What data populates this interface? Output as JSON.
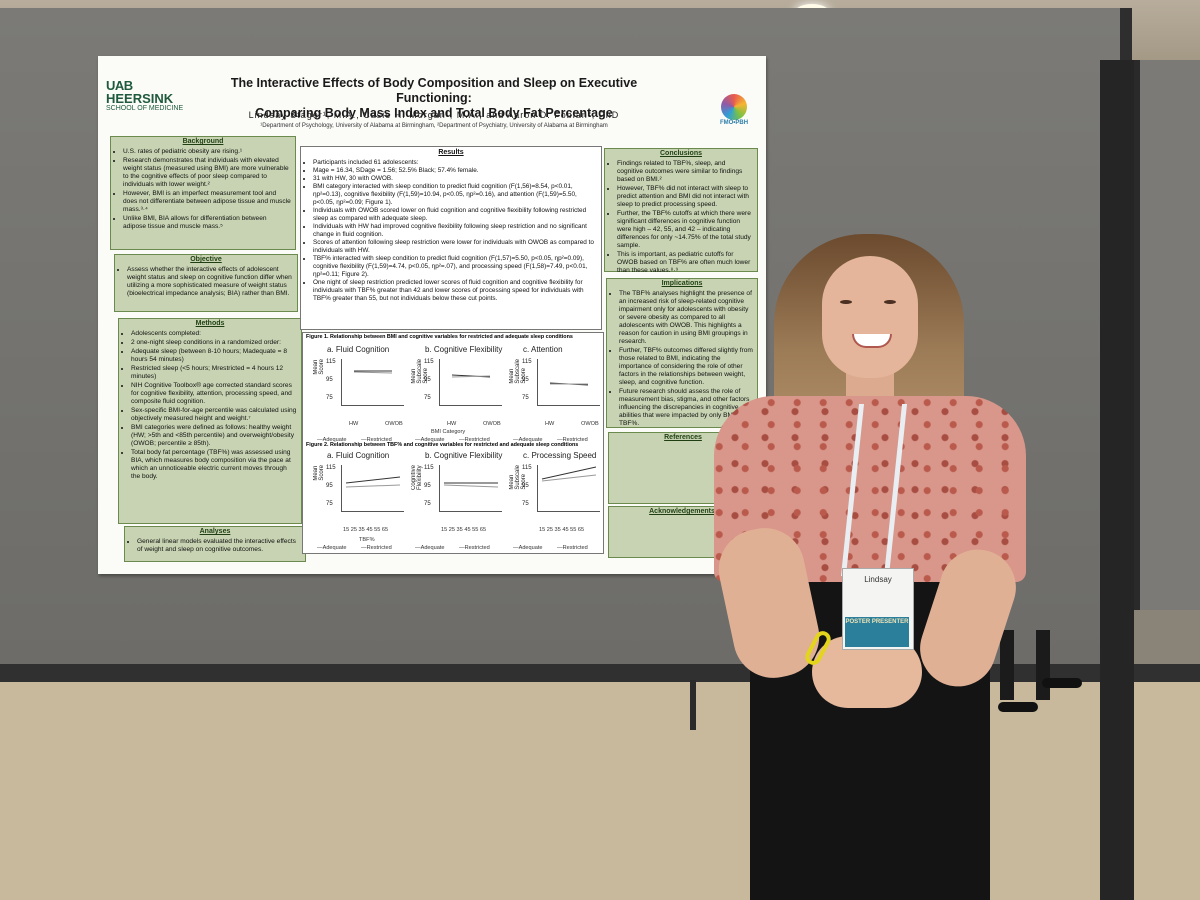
{
  "poster": {
    "logo": {
      "uab": "UAB",
      "heersink": "HEERSINK",
      "school": "SCHOOL OF MEDICINE"
    },
    "badge_text": "FMO•PBH",
    "title_line1": "The Interactive Effects of Body Composition and Sleep on Executive Functioning:",
    "title_line2": "Comparing Body Mass Index and Total Body Fat Percentage",
    "authors": "Lindsay Stager¹, M.A., Casie H. Morgan¹, M.A., and Aaron D. Fobian², PhD",
    "affiliation": "¹Department of Psychology, University of Alabama at Birmingham, ²Department of Psychiatry, University of Alabama at Birmingham",
    "background": {
      "heading": "Background",
      "items": [
        "U.S. rates of pediatric obesity are rising.¹",
        "Research demonstrates that individuals with elevated weight status (measured using BMI) are more vulnerable to the cognitive effects of poor sleep compared to individuals with lower weight.²",
        "However, BMI is an imperfect measurement tool and does not differentiate between adipose tissue and muscle mass.³·⁴",
        "Unlike BMI, BIA allows for differentiation between adipose tissue and muscle mass.⁵"
      ]
    },
    "objective": {
      "heading": "Objective",
      "items": [
        "Assess whether the interactive effects of adolescent weight status and sleep on cognitive function differ when utilizing a more sophisticated measure of weight status (bioelectrical impedance analysis; BIA) rather than BMI."
      ]
    },
    "methods": {
      "heading": "Methods",
      "items": [
        "Adolescents completed:",
        "2 one-night sleep conditions in a randomized order:",
        "Adequate sleep (between 8-10 hours; Madequate = 8 hours 54 minutes)",
        "Restricted sleep (<5 hours; Mrestricted = 4 hours 12 minutes)",
        "NIH Cognitive Toolbox® age corrected standard scores for cognitive flexibility, attention, processing speed, and composite fluid cognition.",
        "Sex-specific BMI-for-age percentile was calculated using objectively measured height and weight.⁷",
        "BMI categories were defined as follows: healthy weight (HW; >5th and <85th percentile) and overweight/obesity (OWOB; percentile ≥ 85th).",
        "Total body fat percentage (TBF%) was assessed using BIA, which measures body composition via the pace at which an unnoticeable electric current moves through the body."
      ]
    },
    "analyses": {
      "heading": "Analyses",
      "items": [
        "General linear models evaluated the interactive effects of weight and sleep on cognitive outcomes."
      ]
    },
    "results": {
      "heading": "Results",
      "items": [
        "Participants included 61 adolescents:",
        "Mage = 16.34, SDage = 1.56; 52.5% Black; 57.4% female.",
        "31 with HW, 30 with OWOB.",
        "BMI category interacted with sleep condition to predict fluid cognition (F(1,56)=8.54, p<0.01, ηp²=0.13), cognitive flexibility (F(1,59)=10.94, p<0.05, ηp²=0.16), and attention (F(1,59)=5.50, p<0.05, ηp²=0.09; Figure 1).",
        "Individuals with OWOB scored lower on fluid cognition and cognitive flexibility following restricted sleep as compared with adequate sleep.",
        "Individuals with HW had improved cognitive flexibility following sleep restriction and no significant change in fluid cognition.",
        "Scores of attention following sleep restriction were lower for individuals with OWOB as compared to individuals with HW.",
        "TBF% interacted with sleep condition to predict fluid cognition (F(1,57)=5.50, p<0.05, ηp²=0.09), cognitive flexibility (F(1,59)=4.74, p<0.05, ηp²=.07), and processing speed (F(1,58)=7.49, p<0.01, ηp²=0.11; Figure 2).",
        "One night of sleep restriction predicted lower scores of fluid cognition and cognitive flexibility for individuals with TBF% greater than 42 and lower scores of processing speed for individuals with TBF% greater than 55, but not individuals below these cut points."
      ]
    },
    "figure1": {
      "caption": "Figure 1. Relationship between BMI and cognitive variables for restricted and adequate sleep conditions",
      "panels": [
        "a. Fluid Cognition",
        "b. Cognitive Flexibility",
        "c. Attention"
      ],
      "y_labels": [
        "Mean Score",
        "Mean Subscale Score",
        "Mean Subscale Score"
      ],
      "y_ticks": [
        "115",
        "95",
        "75"
      ],
      "x_ticks": [
        "HW",
        "OWOB"
      ],
      "x_label": "BMI Category",
      "legend": [
        "Adequate",
        "Restricted"
      ]
    },
    "figure2": {
      "caption": "Figure 2. Relationship between TBF% and cognitive variables for restricted and adequate sleep conditions",
      "panels": [
        "a. Fluid Cognition",
        "b. Cognitive Flexibility",
        "c. Processing Speed"
      ],
      "y_labels": [
        "Mean Score",
        "Cognitive Flexibility",
        "Mean Subscale Score"
      ],
      "y_ticks": [
        "115",
        "95",
        "75"
      ],
      "x_ticks": "15 25 35 45 55 65",
      "x_label": "TBF%",
      "legend": [
        "Adequate",
        "Restricted"
      ]
    },
    "conclusions": {
      "heading": "Conclusions",
      "items": [
        "Findings related to TBF%, sleep, and cognitive outcomes were similar to findings based on BMI.²",
        "However, TBF% did not interact with sleep to predict attention and BMI did not interact with sleep to predict processing speed.",
        "Further, the TBF% cutoffs at which there were significant differences in cognitive function were high – 42, 55, and 42 – indicating differences for only ~14.75% of the total study sample.",
        "This is important, as pediatric cutoffs for OWOB based on TBF% are often much lower than these values.⁸·⁹"
      ]
    },
    "implications": {
      "heading": "Implications",
      "items": [
        "The TBF% analyses highlight the presence of an increased risk of sleep-related cognitive impairment only for adolescents with obesity or severe obesity as compared to all adolescents with OWOB. This highlights a reason for caution in using BMI groupings in research.",
        "Further, TBF% outcomes differed slightly from those related to BMI, indicating the importance of considering the role of other factors in the relationships between weight, sleep, and cognitive function.",
        "Future research should assess the role of measurement bias, stigma, and other factors influencing the discrepancies in cognitive abilities that were impacted by only BMI or TBF%."
      ]
    },
    "references": {
      "heading": "References"
    },
    "acknowledgements": {
      "heading": "Acknowledgements"
    }
  },
  "name_tag": {
    "name": "Lindsay",
    "band": "POSTER PRESENTER"
  }
}
